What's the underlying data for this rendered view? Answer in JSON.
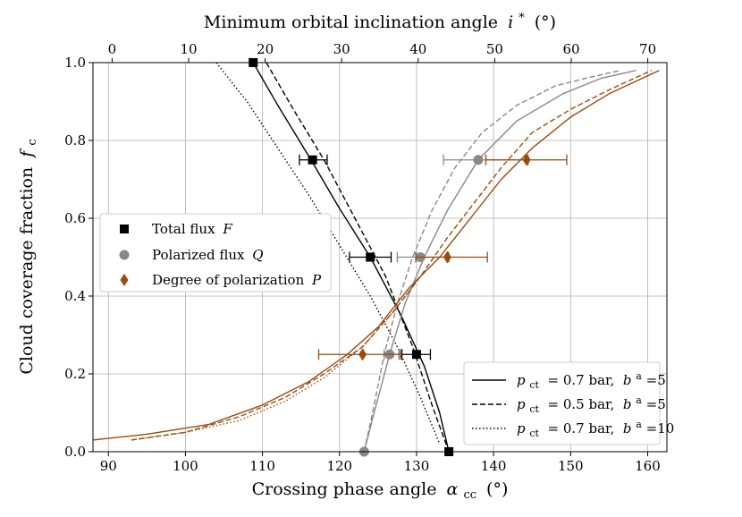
{
  "chart_data": {
    "type": "line",
    "xlabel_main": "Crossing phase angle",
    "xlabel_symbol": "α",
    "xlabel_sub": "cc",
    "xlabel_unit": "(°)",
    "xlabel_top_main": "Minimum orbital inclination angle",
    "xlabel_top_symbol": "i",
    "xlabel_top_sup": "*",
    "xlabel_top_unit": "(°)",
    "ylabel_main": "Cloud coverage fraction",
    "ylabel_symbol": "f",
    "ylabel_sub": "c",
    "xlim": [
      88,
      162.5
    ],
    "ylim": [
      0,
      1
    ],
    "top_xlim": [
      -2.5,
      72.5
    ],
    "xticks": [
      "90",
      "100",
      "110",
      "120",
      "130",
      "140",
      "150",
      "160"
    ],
    "xtick_values": [
      90,
      100,
      110,
      120,
      130,
      140,
      150,
      160
    ],
    "yticks": [
      "0.0",
      "0.2",
      "0.4",
      "0.6",
      "0.8",
      "1.0"
    ],
    "ytick_values": [
      0,
      0.2,
      0.4,
      0.6,
      0.8,
      1.0
    ],
    "top_xticks": [
      "0",
      "10",
      "20",
      "30",
      "40",
      "50",
      "60",
      "70"
    ],
    "top_xtick_values": [
      0,
      10,
      20,
      30,
      40,
      50,
      60,
      70
    ],
    "grid": true,
    "colors": {
      "total_flux": "#000000",
      "polarized_flux": "#888888",
      "degree_of_polarization": "#9a4a0f"
    },
    "legend_markers": [
      {
        "label": "Total flux",
        "symbol": "F",
        "marker": "square",
        "color": "#000000"
      },
      {
        "label": "Polarized flux",
        "symbol": "Q",
        "marker": "circle",
        "color": "#888888"
      },
      {
        "label": "Degree of polarization",
        "symbol": "P",
        "marker": "diamond",
        "color": "#9a4a0f"
      }
    ],
    "legend_lines": [
      {
        "p_label": "p",
        "p_sub": "ct",
        "p_value": " = 0.7 bar, ",
        "b_label": "b",
        "b_sup": "a",
        "b_value": "=5",
        "style": "solid"
      },
      {
        "p_label": "p",
        "p_sub": "ct",
        "p_value": " = 0.5 bar, ",
        "b_label": "b",
        "b_sup": "a",
        "b_value": "=5",
        "style": "dashed"
      },
      {
        "p_label": "p",
        "p_sub": "ct",
        "p_value": " = 0.7 bar, ",
        "b_label": "b",
        "b_sup": "a",
        "b_value": "=10",
        "style": "dotted"
      }
    ],
    "series": [
      {
        "name": "Total flux F, pct=0.7 bar, ba=5",
        "group": "total_flux",
        "style": "solid",
        "x": [
          108.8,
          112,
          116.3,
          120,
          124,
          128,
          131,
          133,
          134.2
        ],
        "y": [
          1.0,
          0.89,
          0.75,
          0.625,
          0.5,
          0.35,
          0.22,
          0.1,
          0.0
        ]
      },
      {
        "name": "Total flux F, pct=0.5 bar, ba=5",
        "group": "total_flux",
        "style": "dashed",
        "x": [
          110.5,
          114,
          118,
          122,
          126,
          129.5,
          132,
          134.2
        ],
        "y": [
          1.0,
          0.88,
          0.75,
          0.6,
          0.45,
          0.27,
          0.12,
          0.0
        ]
      },
      {
        "name": "Total flux F, pct=0.7 bar, ba=10",
        "group": "total_flux",
        "style": "dotted",
        "x": [
          104,
          108,
          112,
          116,
          120,
          124,
          127.5,
          130.5,
          133
        ],
        "y": [
          1.0,
          0.9,
          0.78,
          0.66,
          0.53,
          0.4,
          0.27,
          0.14,
          0.02
        ]
      },
      {
        "name": "Polarized flux Q, pct=0.7 bar, ba=5",
        "group": "polarized_flux",
        "style": "solid",
        "x": [
          123.2,
          124.5,
          126.5,
          128.5,
          131,
          134,
          138,
          143,
          149,
          154,
          158.5
        ],
        "y": [
          0.0,
          0.1,
          0.25,
          0.38,
          0.5,
          0.62,
          0.75,
          0.85,
          0.92,
          0.96,
          0.98
        ]
      },
      {
        "name": "Polarized flux Q, pct=0.5 bar, ba=5",
        "group": "polarized_flux",
        "style": "dashed",
        "x": [
          123.2,
          124.3,
          125.8,
          127.5,
          129.5,
          132,
          135,
          138.5,
          143,
          148,
          152,
          156.5
        ],
        "y": [
          0.0,
          0.1,
          0.25,
          0.38,
          0.5,
          0.62,
          0.73,
          0.82,
          0.89,
          0.94,
          0.96,
          0.98
        ]
      },
      {
        "name": "Degree of polarization P, pct=0.7 bar, ba=5",
        "group": "degree_of_polarization",
        "style": "solid",
        "x": [
          88,
          95,
          103,
          110,
          116,
          121,
          125,
          129,
          133,
          137,
          141,
          145,
          150,
          155,
          161.5
        ],
        "y": [
          0.03,
          0.045,
          0.07,
          0.12,
          0.18,
          0.25,
          0.32,
          0.42,
          0.5,
          0.6,
          0.7,
          0.78,
          0.86,
          0.92,
          0.98
        ]
      },
      {
        "name": "Degree of polarization P, pct=0.5 bar, ba=5",
        "group": "degree_of_polarization",
        "style": "dashed",
        "x": [
          93,
          100,
          107,
          113,
          118,
          123,
          127,
          130.5,
          134,
          137.5,
          141,
          145,
          150,
          155,
          160.5
        ],
        "y": [
          0.03,
          0.05,
          0.09,
          0.14,
          0.2,
          0.27,
          0.36,
          0.45,
          0.55,
          0.64,
          0.73,
          0.82,
          0.88,
          0.93,
          0.98
        ]
      },
      {
        "name": "Degree of polarization P, pct=0.7 bar, ba=10",
        "group": "degree_of_polarization",
        "style": "dotted",
        "x": [
          93,
          100,
          107,
          113,
          118,
          123,
          127,
          130.5
        ],
        "y": [
          0.03,
          0.05,
          0.08,
          0.13,
          0.19,
          0.27,
          0.36,
          0.45
        ]
      }
    ],
    "points": [
      {
        "name": "Total flux",
        "group": "total_flux",
        "marker": "square",
        "x": 108.8,
        "y": 1.0,
        "xerr_low": 108.8,
        "xerr_high": 108.8
      },
      {
        "name": "Total flux",
        "group": "total_flux",
        "marker": "square",
        "x": 116.5,
        "y": 0.75,
        "xerr_low": 114.8,
        "xerr_high": 118.4
      },
      {
        "name": "Total flux",
        "group": "total_flux",
        "marker": "square",
        "x": 124.0,
        "y": 0.5,
        "xerr_low": 121.3,
        "xerr_high": 126.7
      },
      {
        "name": "Total flux",
        "group": "total_flux",
        "marker": "square",
        "x": 130.0,
        "y": 0.25,
        "xerr_low": 128.1,
        "xerr_high": 131.8
      },
      {
        "name": "Total flux",
        "group": "total_flux",
        "marker": "square",
        "x": 134.2,
        "y": 0.0,
        "xerr_low": 134.2,
        "xerr_high": 134.2
      },
      {
        "name": "Polarized flux",
        "group": "polarized_flux",
        "marker": "circle",
        "x": 123.2,
        "y": 0.0,
        "xerr_low": 123.2,
        "xerr_high": 123.2
      },
      {
        "name": "Polarized flux",
        "group": "polarized_flux",
        "marker": "circle",
        "x": 126.5,
        "y": 0.25,
        "xerr_low": 125.8,
        "xerr_high": 127.7
      },
      {
        "name": "Polarized flux",
        "group": "polarized_flux",
        "marker": "circle",
        "x": 130.5,
        "y": 0.5,
        "xerr_low": 127.5,
        "xerr_high": 134.2
      },
      {
        "name": "Polarized flux",
        "group": "polarized_flux",
        "marker": "circle",
        "x": 138.0,
        "y": 0.75,
        "xerr_low": 133.5,
        "xerr_high": 144.5
      },
      {
        "name": "Degree of polarization",
        "group": "degree_of_polarization",
        "marker": "diamond",
        "x": 123.0,
        "y": 0.25,
        "xerr_low": 117.3,
        "xerr_high": 127.9
      },
      {
        "name": "Degree of polarization",
        "group": "degree_of_polarization",
        "marker": "diamond",
        "x": 134.0,
        "y": 0.5,
        "xerr_low": 129.9,
        "xerr_high": 139.2
      },
      {
        "name": "Degree of polarization",
        "group": "degree_of_polarization",
        "marker": "diamond",
        "x": 144.3,
        "y": 0.75,
        "xerr_low": 139.0,
        "xerr_high": 149.5
      }
    ]
  }
}
